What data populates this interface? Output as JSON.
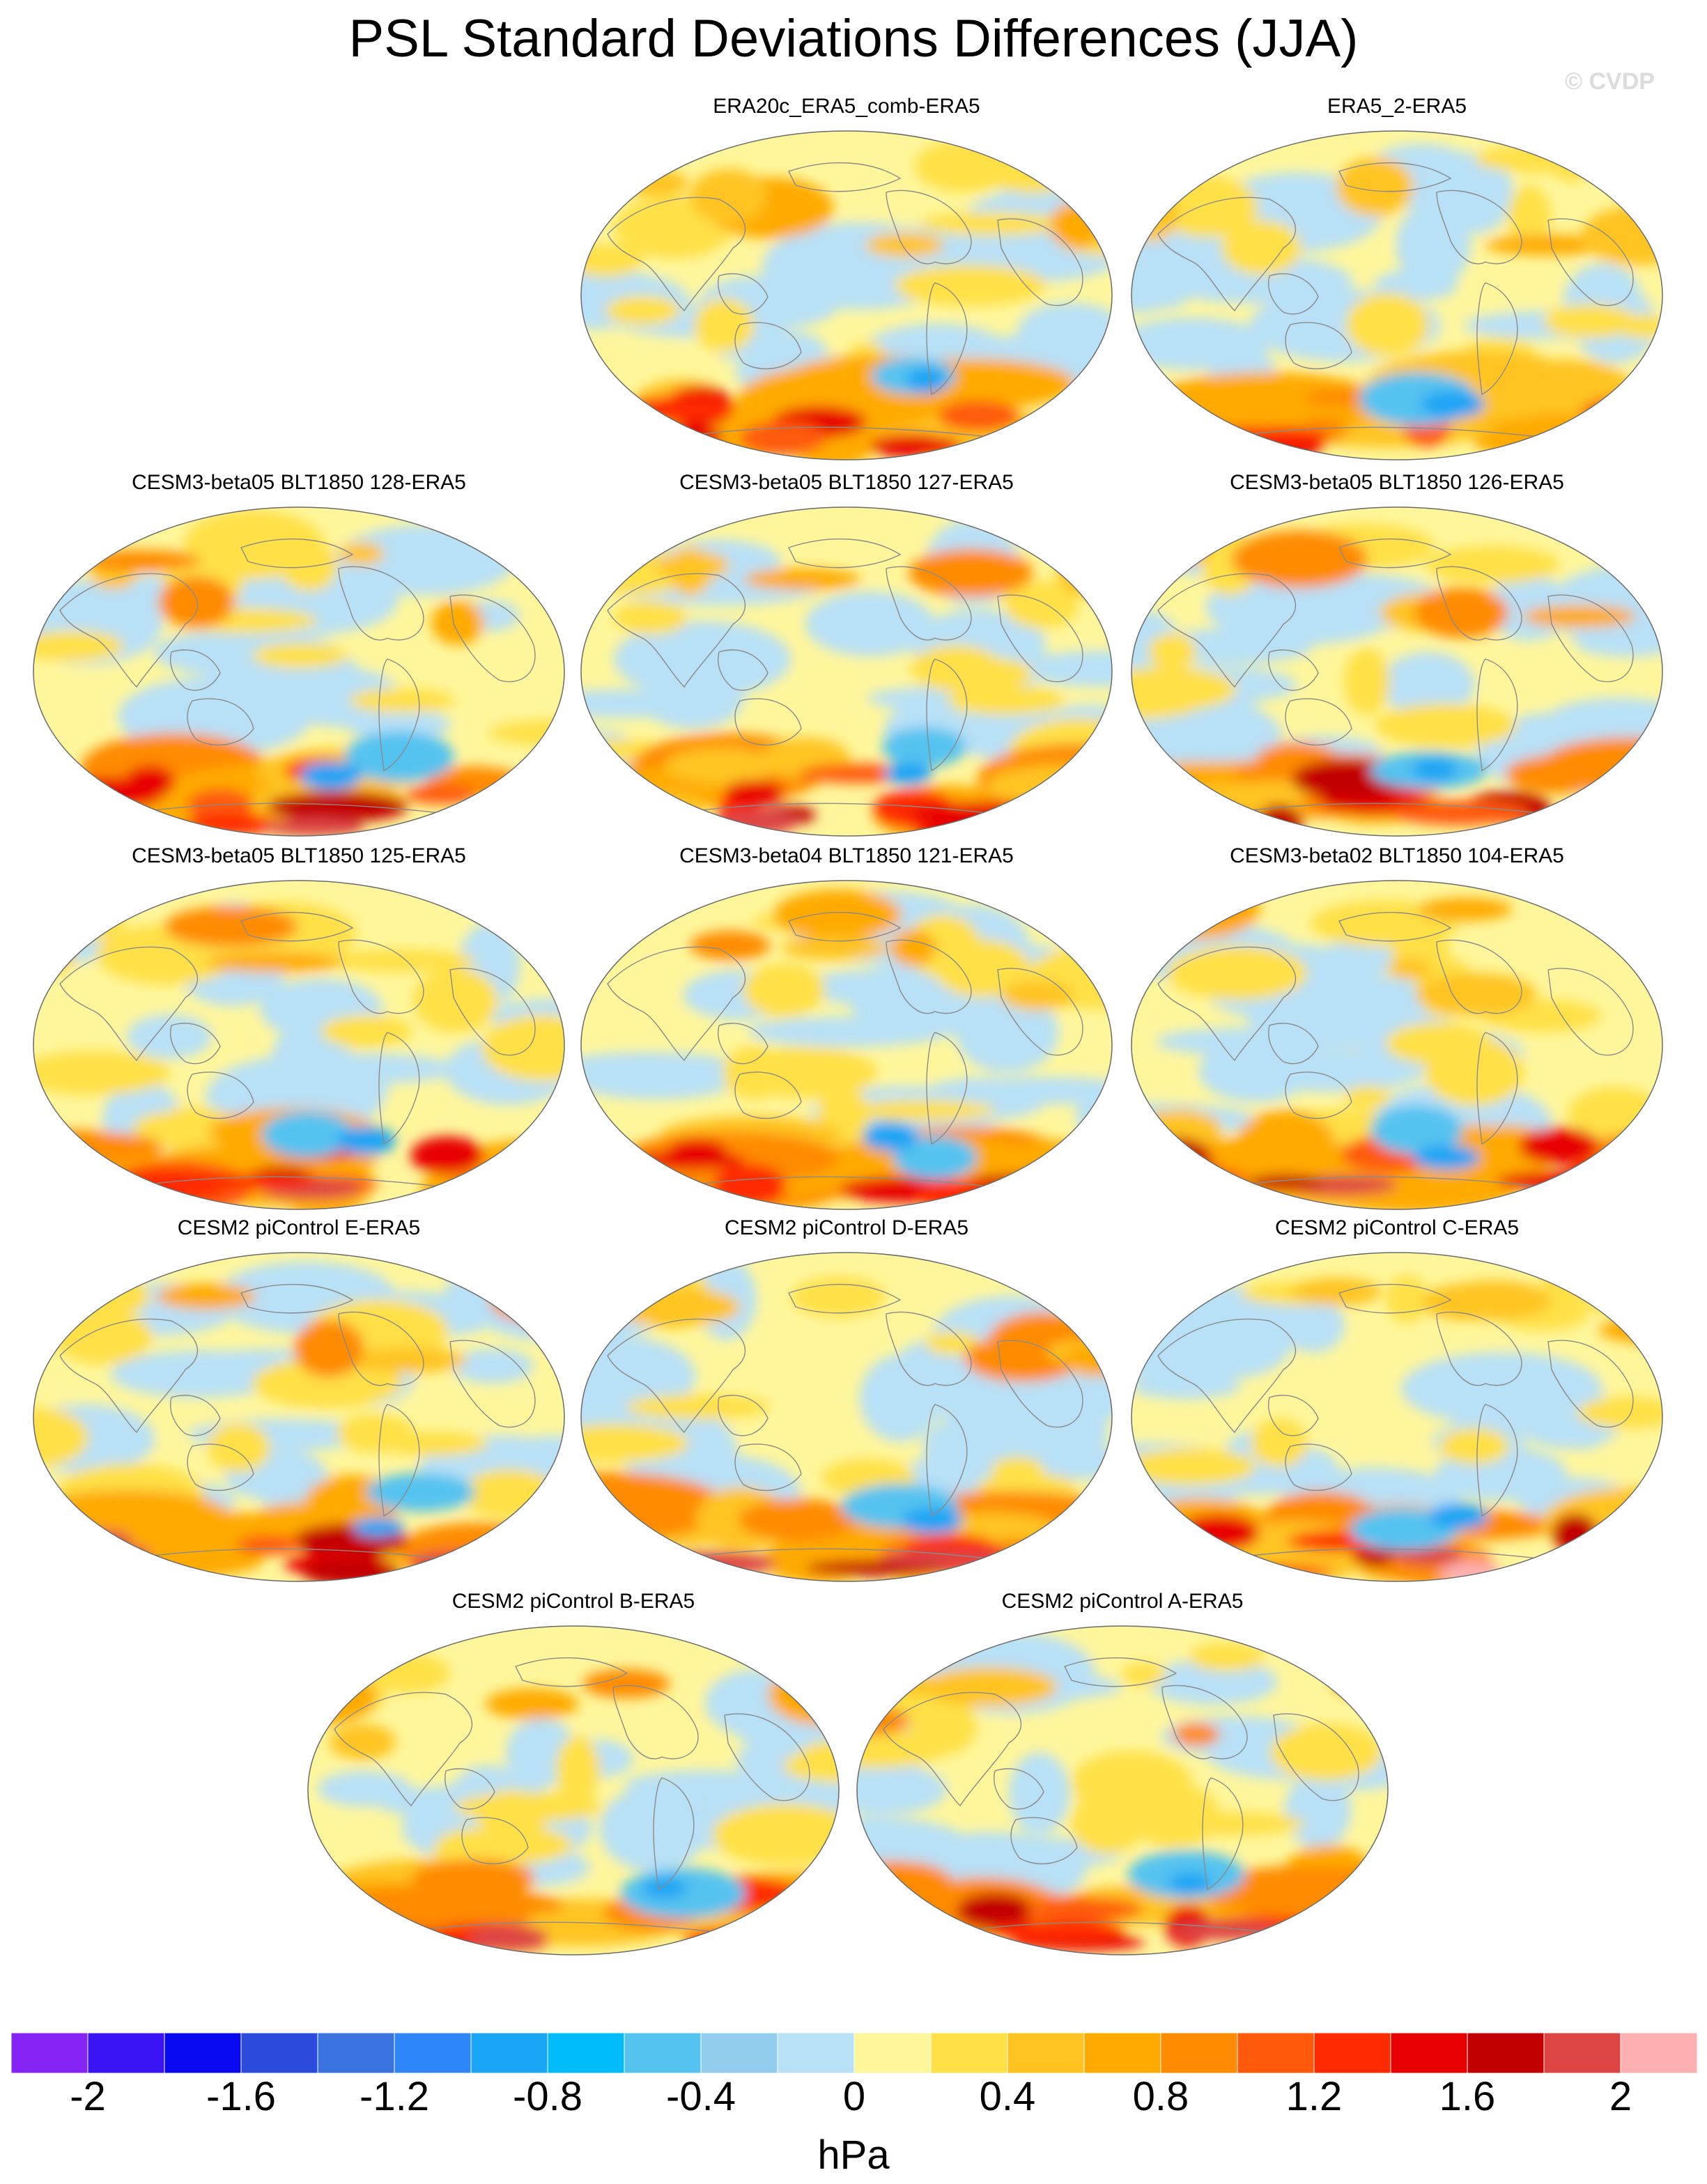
{
  "title": "PSL Standard Deviations Differences (JJA)",
  "watermark": "© CVDP",
  "panels": [
    {
      "label": "ERA20c_ERA5_comb-ERA5",
      "seed": 3,
      "warm": 0.9
    },
    {
      "label": "ERA5_2-ERA5",
      "seed": 7,
      "warm": 0.6
    },
    {
      "label": "CESM3-beta05 BLT1850 128-ERA5",
      "seed": 11,
      "warm": 1.2
    },
    {
      "label": "CESM3-beta05 BLT1850 127-ERA5",
      "seed": 13,
      "warm": 1.1
    },
    {
      "label": "CESM3-beta05 BLT1850 126-ERA5",
      "seed": 17,
      "warm": 1.2
    },
    {
      "label": "CESM3-beta05 BLT1850 125-ERA5",
      "seed": 19,
      "warm": 1.3
    },
    {
      "label": "CESM3-beta04 BLT1850 121-ERA5",
      "seed": 23,
      "warm": 1.2
    },
    {
      "label": "CESM3-beta02 BLT1850 104-ERA5",
      "seed": 29,
      "warm": 1.2
    },
    {
      "label": "CESM2 piControl E-ERA5",
      "seed": 31,
      "warm": 1.5
    },
    {
      "label": "CESM2 piControl D-ERA5",
      "seed": 37,
      "warm": 1.2
    },
    {
      "label": "CESM2 piControl C-ERA5",
      "seed": 41,
      "warm": 1.4
    },
    {
      "label": "CESM2 piControl B-ERA5",
      "seed": 43,
      "warm": 1.3
    },
    {
      "label": "CESM2 piControl A-ERA5",
      "seed": 47,
      "warm": 1.3
    }
  ],
  "colorbar": {
    "colors": [
      "#8624f5",
      "#3b14f5",
      "#0a0af0",
      "#2a4bdc",
      "#3a72e0",
      "#2f86f7",
      "#1aa4f5",
      "#00bdf9",
      "#54c3f0",
      "#93cdee",
      "#b8e0f6",
      "#fff69c",
      "#ffe047",
      "#ffc421",
      "#ffaa00",
      "#ff8b00",
      "#ff5a0a",
      "#ff2a00",
      "#e80000",
      "#c30000",
      "#dd4444",
      "#fdb0b0"
    ],
    "ticks": [
      "-2",
      "-1.6",
      "-1.2",
      "-0.8",
      "-0.4",
      "0",
      "0.4",
      "0.8",
      "1.2",
      "1.6",
      "2"
    ],
    "units": "hPa"
  }
}
